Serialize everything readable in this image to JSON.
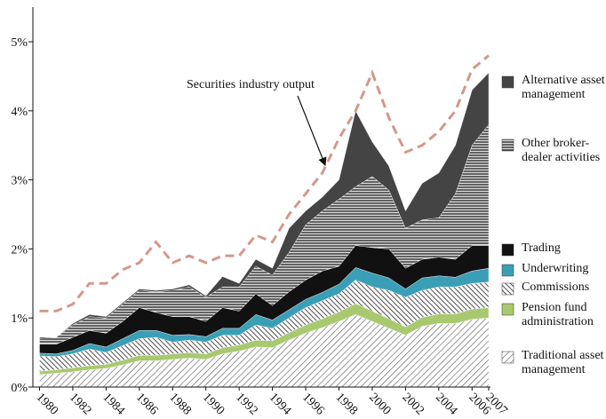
{
  "chart_data": {
    "type": "area",
    "x": [
      1980,
      1981,
      1982,
      1983,
      1984,
      1985,
      1986,
      1987,
      1988,
      1989,
      1990,
      1991,
      1992,
      1993,
      1994,
      1995,
      1996,
      1997,
      1998,
      1999,
      2000,
      2001,
      2002,
      2003,
      2004,
      2005,
      2006,
      2007
    ],
    "xlim": [
      1979.6,
      2007
    ],
    "xticks": [
      1980,
      1982,
      1984,
      1986,
      1988,
      1990,
      1992,
      1994,
      1996,
      1998,
      2000,
      2002,
      2004,
      2006,
      2007
    ],
    "ylim": [
      0,
      5
    ],
    "yticks": [
      {
        "value": 0,
        "label": "0%"
      },
      {
        "value": 1,
        "label": "1%"
      },
      {
        "value": 2,
        "label": "2%"
      },
      {
        "value": 3,
        "label": "3%"
      },
      {
        "value": 4,
        "label": "4%"
      },
      {
        "value": 5,
        "label": "5%"
      }
    ],
    "series": [
      {
        "name": "Traditional asset management",
        "color": "#555555",
        "hatch": "diagonal",
        "values": [
          0.18,
          0.2,
          0.22,
          0.25,
          0.27,
          0.32,
          0.38,
          0.38,
          0.4,
          0.42,
          0.4,
          0.48,
          0.52,
          0.58,
          0.57,
          0.68,
          0.78,
          0.86,
          0.95,
          1.05,
          0.95,
          0.85,
          0.75,
          0.88,
          0.92,
          0.92,
          0.98,
          1.0
        ]
      },
      {
        "name": "Pension fund administration",
        "color": "#a9c970",
        "hatch": null,
        "values": [
          0.05,
          0.05,
          0.06,
          0.06,
          0.06,
          0.07,
          0.08,
          0.08,
          0.08,
          0.08,
          0.08,
          0.09,
          0.09,
          0.1,
          0.1,
          0.11,
          0.12,
          0.13,
          0.14,
          0.16,
          0.15,
          0.14,
          0.12,
          0.13,
          0.14,
          0.14,
          0.15,
          0.15
        ]
      },
      {
        "name": "Commissions",
        "color": "#333333",
        "hatch": "backdiagonal",
        "values": [
          0.22,
          0.19,
          0.2,
          0.24,
          0.17,
          0.21,
          0.24,
          0.26,
          0.17,
          0.18,
          0.17,
          0.18,
          0.14,
          0.22,
          0.18,
          0.21,
          0.25,
          0.26,
          0.26,
          0.34,
          0.35,
          0.41,
          0.43,
          0.39,
          0.39,
          0.39,
          0.37,
          0.37
        ]
      },
      {
        "name": "Underwriting",
        "color": "#3a9fb6",
        "hatch": null,
        "values": [
          0.04,
          0.04,
          0.05,
          0.08,
          0.08,
          0.1,
          0.12,
          0.1,
          0.1,
          0.08,
          0.08,
          0.1,
          0.1,
          0.15,
          0.12,
          0.12,
          0.12,
          0.12,
          0.14,
          0.18,
          0.2,
          0.18,
          0.12,
          0.18,
          0.16,
          0.14,
          0.18,
          0.2
        ]
      },
      {
        "name": "Trading",
        "color": "#111111",
        "hatch": null,
        "values": [
          0.13,
          0.14,
          0.19,
          0.19,
          0.2,
          0.25,
          0.33,
          0.26,
          0.27,
          0.26,
          0.22,
          0.3,
          0.25,
          0.3,
          0.21,
          0.26,
          0.28,
          0.31,
          0.26,
          0.32,
          0.37,
          0.42,
          0.3,
          0.27,
          0.27,
          0.26,
          0.37,
          0.33
        ]
      },
      {
        "name": "Other broker-dealer activities",
        "color": "#222222",
        "hatch": "horizontal",
        "values": [
          0.08,
          0.1,
          0.18,
          0.2,
          0.22,
          0.25,
          0.25,
          0.3,
          0.38,
          0.43,
          0.35,
          0.3,
          0.35,
          0.4,
          0.44,
          0.57,
          0.8,
          0.87,
          0.97,
          0.85,
          1.03,
          0.85,
          0.58,
          0.57,
          0.57,
          0.95,
          1.45,
          1.75
        ]
      },
      {
        "name": "Alternative asset management",
        "color": "#444444",
        "hatch": null,
        "values": [
          0.02,
          0,
          0.02,
          0.03,
          0.02,
          0.02,
          0.02,
          0.02,
          0.02,
          0.03,
          0.02,
          0.15,
          0.05,
          0.1,
          0.1,
          0.35,
          0.2,
          0.2,
          0.28,
          1.1,
          0.5,
          0.35,
          0.25,
          0.53,
          0.65,
          0.7,
          0.8,
          0.75
        ]
      }
    ],
    "line": {
      "name": "Securities industry output",
      "color": "#d4988c",
      "dashed": true,
      "values": [
        1.1,
        1.1,
        1.2,
        1.5,
        1.5,
        1.7,
        1.8,
        2.1,
        1.8,
        1.9,
        1.8,
        1.9,
        1.9,
        2.2,
        2.1,
        2.5,
        2.8,
        3.1,
        3.6,
        4.0,
        4.55,
        3.9,
        3.4,
        3.5,
        3.7,
        4.0,
        4.6,
        4.8
      ]
    }
  }
}
